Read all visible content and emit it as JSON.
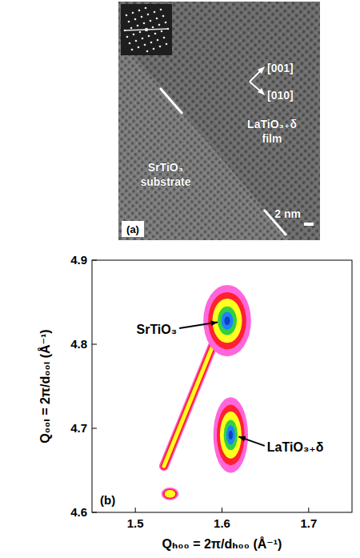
{
  "image_panel": {
    "panel_label": "(a)",
    "directions": [
      "[001]",
      "[010]"
    ],
    "substrate_label": [
      "SrTiO₃",
      "substrate"
    ],
    "film_label": [
      "LaTiO₃₊δ",
      "film"
    ],
    "scale_bar": "2 nm"
  },
  "chart_data": {
    "type": "map",
    "panel_label": "(b)",
    "x_label": "Qₕ₀₀ = 2π/dₕ₀₀ (Å⁻¹)",
    "y_label": "Q₀₀ₗ = 2π/d₀₀ₗ (Å⁻¹)",
    "xlim": [
      1.45,
      1.75
    ],
    "ylim": [
      4.6,
      4.9
    ],
    "xticks": [
      1.5,
      1.6,
      1.7
    ],
    "yticks": [
      4.6,
      4.7,
      4.8,
      4.9
    ],
    "peaks": [
      {
        "x": 1.606,
        "y": 4.828,
        "x_width": 0.055,
        "y_width": 0.085
      },
      {
        "x": 1.61,
        "y": 4.692,
        "x_width": 0.04,
        "y_width": 0.09
      },
      {
        "x": 1.54,
        "y": 4.622,
        "x_width": 0.02,
        "y_width": 0.015
      }
    ],
    "streak": {
      "x": [
        1.533,
        1.59
      ],
      "y": [
        4.655,
        4.8
      ]
    },
    "annotations": [
      {
        "text": "SrTiO₃",
        "x": 1.548,
        "y": 4.812
      },
      {
        "text": "LaTiO₃₊δ",
        "x": 1.652,
        "y": 4.672
      }
    ]
  }
}
